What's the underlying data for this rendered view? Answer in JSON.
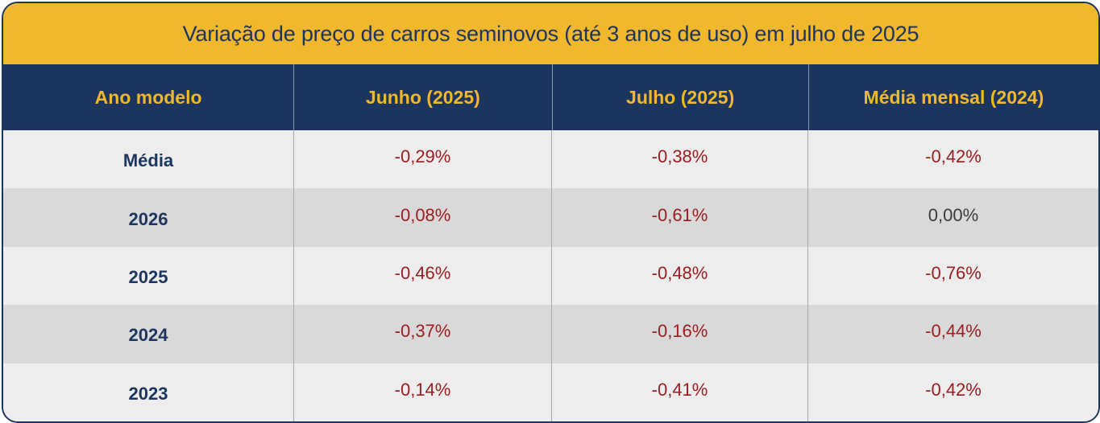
{
  "chart_data": {
    "type": "table",
    "title": "Variação de preço de carros seminovos (até 3 anos de uso) em julho de 2025",
    "columns": [
      "Ano modelo",
      "Junho (2025)",
      "Julho (2025)",
      "Média mensal (2024)"
    ],
    "rows": [
      {
        "label": "Média",
        "values": [
          "-0,29%",
          "-0,38%",
          "-0,42%"
        ]
      },
      {
        "label": "2026",
        "values": [
          "-0,08%",
          "-0,61%",
          "0,00%"
        ]
      },
      {
        "label": "2025",
        "values": [
          "-0,46%",
          "-0,48%",
          "-0,76%"
        ]
      },
      {
        "label": "2024",
        "values": [
          "-0,37%",
          "-0,16%",
          "-0,44%"
        ]
      },
      {
        "label": "2023",
        "values": [
          "-0,14%",
          "-0,41%",
          "-0,42%"
        ]
      }
    ]
  },
  "colors": {
    "title_bg": "#f1b72d",
    "header_bg": "#1c355e",
    "header_text": "#f1b72d",
    "label_text": "#1c355e",
    "negative_text": "#9a1d20",
    "zero_text": "#3a3a3a",
    "row_light": "#ededed",
    "row_dark": "#d9d9d9"
  }
}
